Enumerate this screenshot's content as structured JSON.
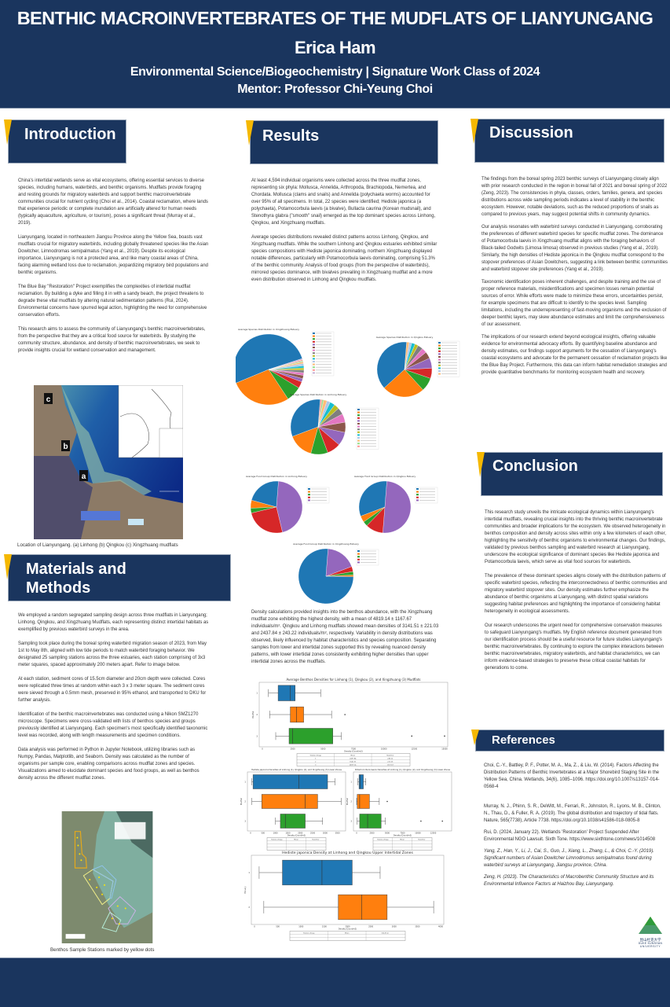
{
  "header": {
    "title": "BENTHIC MACROINVERTEBRATES OF THE MUDFLATS OF LIANYUNGANG",
    "author": "Erica Ham",
    "program": "Environmental Science/Biogeochemistry | Signature Work Class of 2024",
    "mentor": "Mentor: Professor Chi-Yeung Choi"
  },
  "colors": {
    "navy": "#1a355e",
    "accent_yellow": "#f5b800"
  },
  "introduction": {
    "heading": "Introduction",
    "paragraphs": [
      "China's intertidal wetlands serve as vital ecosystems, offering essential services to diverse species, including humans, waterbirds, and benthic organisms. Mudflats provide foraging and resting grounds for migratory waterbirds and support benthic macroinvertebrate communities crucial for nutrient cycling (Choi et al., 2014). Coastal reclamation, where lands that experience periodic or complete inundation are artificially altered for human needs (typically aquaculture, agriculture, or tourism), poses a significant threat (Murray et al., 2019).",
      "Lianyungang, located in northeastern Jiangsu Province along the Yellow Sea, boasts vast mudflats crucial for migratory waterbirds, including globally threatened species like the Asian Dowitcher, Limnodromas semipalmatus (Yang et al., 2019). Despite its ecological importance, Lianyungang is not a protected area, and like many coastal areas of China, facing alarming wetland loss due to reclamation, jeopardizing migratory bird populations and benthic organisms.",
      "The Blue Bay \"Restoration\" Project exemplifies the complexities of intertidal mudflat reclamation. By building a dyke and filling it in with a sandy beach, the project threatens to degrade these vital mudflats by altering natural sedimentation patterns (Rui, 2024). Environmental concerns have spurred legal action, highlighting the need for comprehensive conservation efforts.",
      "This research aims to assess the community of Lianyungang's benthic macroinvertebrates, from the perspective that they are a critical food source for waterbirds. By studying the community structure, abundance, and density of benthic macroinvertebrates, we seek to provide insights crucial for wetland conservation and management."
    ],
    "map_labels": {
      "a": "a",
      "b": "b",
      "c": "c"
    },
    "map_caption": "Location of Lianyungang. (a) Linhong (b) Qingkou (c) Xingzhuang mudflats"
  },
  "methods": {
    "heading_line1": "Materials and",
    "heading_line2": "Methods",
    "paragraphs": [
      "We employed a random segregated sampling design across three mudflats in Lianyungang; Linhong, Qingkou, and Xingzhuang Mudflats, each representing distinct intertidal habitats as exemplified by previous waterbird surveys in the area.",
      "Sampling took place during the boreal spring  waterbird migration season of 2023, from May 1st to May 8th, aligned with low tide periods to match waterbird foraging behavior. We designated 25 sampling stations across the three estuaries, each station comprising of 3x3 meter squares, spaced approximately 200 meters apart. Refer to image below.",
      "At each station, sediment cores of 15.5cm diameter and 20cm depth were collected. Cores were replicated three times at random within each 3 x 3 meter square. The sediment cores were sieved through a 0.5mm mesh, preserved in 95% ethanol, and transported to DKU for further analysis.",
      "Identification of the benthic macroinvertebrates was conducted using a Nikon SMZ1270 microscope. Specimens were cross-validated with lists of benthos species and groups previously identified at Lianyungang. Each specimen's most specifically identified taxonomic level was recorded, along with length measurements and specimen conditions.",
      "Data analysis was performed in Python in Jupyter Notebook, utilizing libraries such as Numpy, Pandas, Matplotlib, and Seaborn. Density was calculated as the number of organisms per sample core, enabling comparisons across mudflat zones and species. Visualizations aimed to elucidate dominant species and food groups, as well as benthos density across the different mudflat zones."
    ],
    "stations_caption": "Benthos Sample Stations marked by yellow dots"
  },
  "results": {
    "heading": "Results",
    "paragraphs": [
      "At least 4,594 individual organisms were collected across the three mudflat zones, representing six phyla: Mollusca, Annelida, Arthropoda, Brachiopoda, Nemertea, and Chordata. Mollusca (clams and snails) and Annelida (polychaeta worms) accounted for over 95% of all specimens. In total, 22 species were identified; Hediste japonica (a polychaeta), Potamocorbula laevis (a bivalve), Bullacta caurina (Korean mudsnail), and Stenothyra glabra (\"smooth\" snail) emerged as the top dominant species across Linhong, Qingkou, and Xingzhuang mudflats.",
      "Average species distributions revealed distinct patterns across Linhong, Qingkou, and Xingzhuang mudflats. While the southern Linhong and Qingkou estuaries exhibited similar species compositions with Hediste japonica dominating, northern Xingzhuang displayed notable differences, particularly with Potamocorbula laevis dominating, comprising 51.3% of the benthic community. Analysis of food groups (from the perspective of waterbirds), mirrored species dominance, with bivalves prevailing in Xingzhuang mudflat and a more even distribution observed in Linhong and Qingkou mudflats."
    ],
    "density_paragraph": "Density calculations provided insights into the benthos abundance, with the Xingzhuang mudflat zone exhibiting the highest density, with a mean of 4819.14 ± 1167.67 individuals/m². Qingkou and Linhong mudflats showed mean densities of 3141.51 ± 221.03 and 2437.84 ± 243.22 individuals/m², respectively. Variability in density distributions was observed, likely influenced by habitat characteristics and species composition. Separating samples from lower and intertidal zones supported this by revealing nuanced density patterns, with lower intertidal zones consistently exhibiting higher densities than upper intertidal zones across the mudflats.",
    "table_headers": [
      "Station_Group",
      "Mean",
      "Std_Error"
    ]
  },
  "chart_data": [
    {
      "type": "pie",
      "title": "Average Species Distribution in Xingzhuang Estuary",
      "values": [
        51.3,
        28,
        7,
        3,
        1.5,
        1.5,
        1.2,
        1.2,
        1,
        1,
        1,
        0.8,
        0.5,
        0.5,
        0.5
      ],
      "labels_shown": [
        "51.3%"
      ]
    },
    {
      "type": "pie",
      "title": "Average Species Distribution in Qingkou Estuary",
      "values": [
        38,
        25,
        8,
        6,
        6,
        4,
        3,
        3,
        2,
        2,
        1.5,
        1.5
      ]
    },
    {
      "type": "pie",
      "title": "Average Species Distribution in Linhong Estuary",
      "values": [
        32,
        15,
        10,
        8,
        8,
        6,
        5,
        4,
        3,
        3,
        2,
        2,
        1,
        1
      ]
    },
    {
      "type": "pie",
      "title": "Average Food Group Distribution in Linhong Estuary",
      "values": [
        22,
        5,
        3,
        25,
        45
      ]
    },
    {
      "type": "pie",
      "title": "Average Food Group Distribution in Qingkou Estuary",
      "values": [
        32,
        4,
        3,
        11,
        50
      ]
    },
    {
      "type": "pie",
      "title": "Average Food Group Distribution in Xingzhuang Estuary",
      "values": [
        76,
        1,
        2,
        3,
        18
      ]
    },
    {
      "type": "box",
      "title": "Average Benthos Densities for Linhong (1), Qingkou (2), and Xingzhuang (3) Mudflats",
      "xlabel": "Density (Count/m2)",
      "ylabel": "Mudflat",
      "categories": [
        "1",
        "2",
        "3"
      ],
      "xlim": [
        0,
        15000
      ],
      "xticks": [
        0,
        2500,
        5000,
        7500,
        10000,
        12500,
        15000
      ],
      "boxes": [
        {
          "min": 500,
          "q1": 1300,
          "median": 2300,
          "q3": 2700,
          "max": 4800,
          "outliers": []
        },
        {
          "min": 600,
          "q1": 2300,
          "median": 2800,
          "q3": 3400,
          "max": 5700,
          "outliers": [
            6800
          ]
        },
        {
          "min": 1100,
          "q1": 2200,
          "median": 2500,
          "q3": 5800,
          "max": 6500,
          "outliers": [
            12300,
            15000
          ]
        }
      ],
      "table": [
        [
          "1",
          "2437.84",
          "243.22"
        ],
        [
          "2",
          "3141.51",
          "221.03"
        ],
        [
          "3",
          "4819.14",
          "1167.67"
        ]
      ]
    },
    {
      "type": "box",
      "title": "Hediste japonica Densities at Linhong (1), Qingkou (2), and Xingzhuang (3) Lower Zones",
      "xlabel": "Density (Count/m2)",
      "ylabel": "Mudflat",
      "categories": [
        "1",
        "2",
        "3"
      ],
      "xlim": [
        0,
        3700
      ],
      "xticks": [
        0,
        500,
        1000,
        1500,
        2000,
        2500,
        3000,
        3500
      ],
      "boxes": [
        {
          "min": 50,
          "q1": 100,
          "median": 1950,
          "q3": 3100,
          "max": 3400,
          "outliers": []
        },
        {
          "min": 50,
          "q1": 450,
          "median": 2200,
          "q3": 2700,
          "max": 3650,
          "outliers": []
        },
        {
          "min": 1000,
          "q1": 1200,
          "median": 1400,
          "q3": 2200,
          "max": 2900,
          "outliers": []
        }
      ]
    },
    {
      "type": "box",
      "title": "Potamocorbula laevis Densities at Linhong (1), Qingkou (2), and Xingzhuang (3) Lower Zones",
      "xlabel": "Density (Count/m2)",
      "ylabel": "Mudflat",
      "categories": [
        "1",
        "2",
        "3"
      ],
      "xlim": [
        0,
        15000
      ],
      "xticks": [
        0,
        2500,
        5000,
        7500,
        10000,
        12500
      ],
      "boxes": [
        {
          "min": 200,
          "q1": 400,
          "median": 600,
          "q3": 1100,
          "max": 1500,
          "outliers": []
        },
        {
          "min": 0,
          "q1": 100,
          "median": 500,
          "q3": 2100,
          "max": 3700,
          "outliers": [
            5000
          ]
        },
        {
          "min": 100,
          "q1": 500,
          "median": 1800,
          "q3": 4000,
          "max": 4700,
          "outliers": [
            10500,
            14000
          ]
        }
      ]
    },
    {
      "type": "box",
      "title": "Hediste japonica Density at Linhong and Qingkou Upper Intertidal Zones",
      "xlabel": "Density (Count/m2)",
      "ylabel": "Estuary",
      "categories": [
        "1",
        "2"
      ],
      "xlim": [
        0,
        4000
      ],
      "xticks": [
        0,
        500,
        1000,
        1500,
        2000,
        2500,
        3000,
        3500,
        4000
      ],
      "boxes": [
        {
          "min": 100,
          "q1": 600,
          "median": 1450,
          "q3": 2100,
          "max": 2700,
          "outliers": []
        },
        {
          "min": 200,
          "q1": 1800,
          "median": 2300,
          "q3": 2850,
          "max": 3850,
          "outliers": []
        }
      ]
    }
  ],
  "discussion": {
    "heading": "Discussion",
    "paragraphs": [
      "The findings from the boreal spring 2023 benthic surveys of Lianyungang closely align with prior research conducted in the region in boreal fall of 2021 and boreal spring of 2022 (Zeng, 2023). The consistencies in phyla, classes, orders, families, genera, and species distributions across wide sampling periods indicates a level of stability in the benthic ecosystem. However, notable deviations, such as the reduced proportions of snails as compared to previous years, may suggest potential shifts in community dynamics.",
      "Our analysis resonates with waterbird surveys conducted in Lianyungang, corroborating the preferences of different waterbird species for specific mudflat zones. The dominance of Potamocorbula laevis in Xingzhuang mudflat aligns with the foraging behaviors of Black-tailed Godwits (Limosa limosa) observed in previous studies (Yang et al., 2019). Similarly, the high densities of Hediste japonica in the Qingkou mudflat correspond to the stopover preferences of Asian Dowitchers, suggesting a link between benthic communities and waterbird stopover site preferences (Yang et al., 2019).",
      "Taxonomic identification poses inherent challenges, and despite training and the use of proper reference materials, misidentifications and specimen losses remain potential sources of error. While efforts were made to minimize these errors, uncertainties persist, for example specimens that are difficult to identify to the species level. Sampling limitations, including the underrepresenting of fast-moving organisms and the exclusion of deeper benthic layers, may skew abundance estimates and limit the comprehensiveness of our assessment.",
      "The implications of our research extend beyond ecological insights, offering valuable evidence for environmental advocacy efforts. By quantifying baseline abundance and density estimates, our findings support arguments for the cessation of Lianyungang's coastal ecosystems and advocate for the permanent cessation of reclamation projects like the Blue Bay Project. Furthermore, this data can inform habitat remediation strategies and provide quantitative benchmarks for monitoring ecosystem health and recovery."
    ]
  },
  "conclusion": {
    "heading": "Conclusion",
    "paragraphs": [
      "This research study unveils the intricate ecological dynamics within Lianyungang's intertidal mudflats, revealing crucial insights into the thriving benthic macroinvertebrate communities and broader implications for the ecosystem. We observed heterogeneity in benthos composition and density across sites within only a few kilometers of each other, highlighting the sensitivity of benthic organisms to environmental changes. Our findings, validated by previous benthos sampling and waterbird research at Lianyungang, underscore the ecological significance of dominant species like Hediste japonica  and Potamocorbula laevis, which serve as vital food sources for waterbirds.",
      "The prevalence of these dominant species aligns closely with the distribution patterns of specific waterbird species, reflecting the interconnectedness of benthic communities and migratory waterbird stopover sites. Our density estimates further emphasize the abundance of benthic organisms at Lianyungang, with distinct spatial variations suggesting habitat preferences and highlighting the importance of considering habitat heterogeneity in ecological assessments.",
      "Our research underscores the urgent need for comprehensive conservation measures to safeguard Lianyungang's mudflats. My English reference document generated from our identification process should be a useful resource for future studies Lianyungang's benthic macroinvertebrates. By continuing to explore the complex interactions between benthic macroinvertebrates, migratory waterbirds, and habitat characteristics, we can inform evidence-based strategies to preserve these critical coastal habitats for generations to come."
    ]
  },
  "references": {
    "heading": "References",
    "items": [
      "Choi, C.-Y., Battley, P. F., Potter, M. A., Ma, Z., & Liu, W. (2014). Factors Affecting the Distribution Patterns of Benthic Invertebrates at a Major Shorebird Staging Site in the Yellow Sea, China. Wetlands, 34(6), 1085–1096. https://doi.org/10.1007/s13157-014-0568-4",
      "Murray, N. J., Phinn, S. R., DeWitt, M., Ferrari, R., Johnston, R., Lyons, M. B., Clinton, N., Thau, D., & Fuller, R. A. (2019). The global distribution and trajectory of tidal flats. Nature, 565(7738), Article 7738. https://doi.org/10.1038/s41586-018-0805-8",
      "Rui, D. (2024, January 22). Wetlands 'Restoration' Project Suspended After Environmental NGO Lawsuit. Sixth Tone. https://www.sixthtone.com/news/1014508",
      "Yang, Z., Han, Y., Li, J., Cai, S., Guo, J., Xiang, L., Zhang, L., & Choi, C.-Y. (2019). Significant numbers of Asian Dowitcher Limnodromus semipalmatus found during waterbird surveys at Lianyungang, Jiangsu province, China.",
      "Zeng, H. (2023). The Characteristics of Macrobenthic Community Structure and its Environmental Influence Factors at Haizhou Bay, Lianyungang."
    ]
  },
  "logo": {
    "text_cn": "昆山杜克大学",
    "text_line1": "DUKE KUNSHAN",
    "text_line2": "UNIVERSITY"
  }
}
